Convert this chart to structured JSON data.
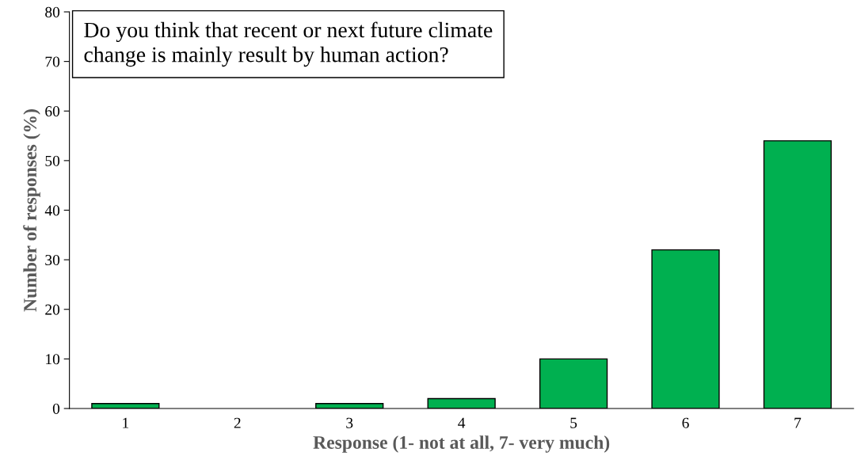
{
  "chart_data": {
    "type": "bar",
    "title": "Do you think that recent or next future climate\nchange is mainly result by human action?",
    "xlabel": "Response (1- not at all, 7- very much)",
    "ylabel": "Number of responses (%)",
    "categories": [
      "1",
      "2",
      "3",
      "4",
      "5",
      "6",
      "7"
    ],
    "values": [
      1,
      0,
      1,
      2,
      10,
      32,
      54
    ],
    "color": "#00b050",
    "ylim": [
      0,
      80
    ],
    "yticks": [
      0,
      10,
      20,
      30,
      40,
      50,
      60,
      70,
      80
    ],
    "grid": false,
    "legend": false
  }
}
